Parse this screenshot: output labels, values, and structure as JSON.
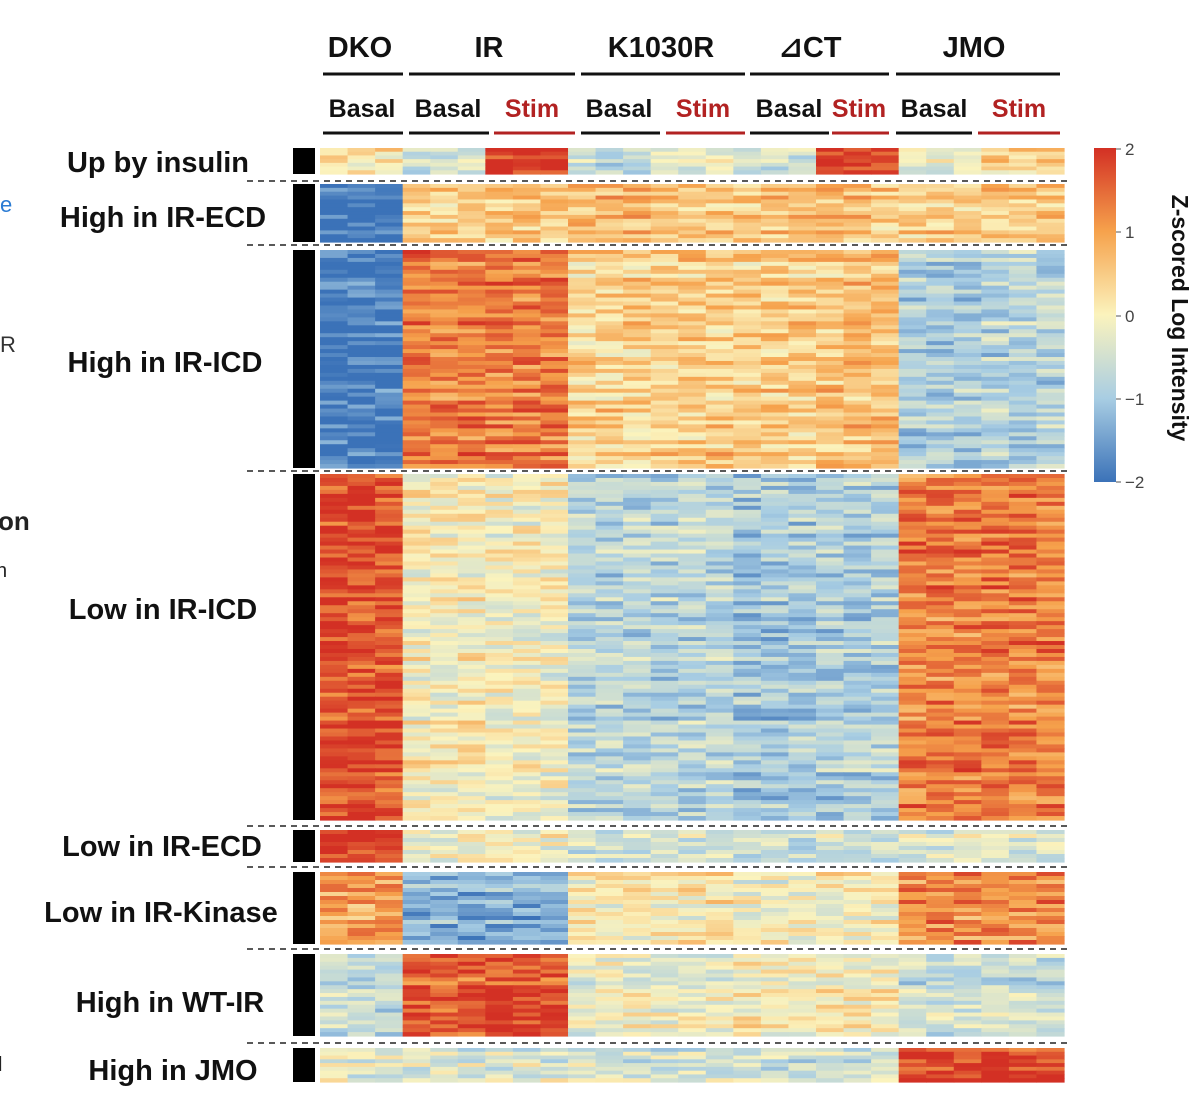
{
  "left_edge_fragments": [
    {
      "text": "e",
      "color": "#2a7bd3"
    },
    {
      "text": "R",
      "color": "#333333"
    },
    {
      "text": "on",
      "color": "#222222"
    },
    {
      "text": "n",
      "color": "#222222"
    },
    {
      "text": "l",
      "color": "#222222"
    }
  ],
  "chart_data": {
    "type": "heatmap",
    "title": "",
    "value_description": "Row z-scored log intensity of proteins across insulin receptor genotypes, basal vs insulin-stimulated",
    "groups": [
      {
        "name": "DKO",
        "conditions": [
          "Basal"
        ]
      },
      {
        "name": "IR",
        "conditions": [
          "Basal",
          "Stim"
        ]
      },
      {
        "name": "K1030R",
        "conditions": [
          "Basal",
          "Stim"
        ]
      },
      {
        "name": "⊿CT",
        "conditions": [
          "Basal",
          "Stim"
        ]
      },
      {
        "name": "JMO",
        "conditions": [
          "Basal",
          "Stim"
        ]
      }
    ],
    "condition_colors": {
      "Basal": "#111111",
      "Stim": "#b22222"
    },
    "clusters": [
      {
        "label": "Up by insulin",
        "profile": [
          0.2,
          -0.5,
          1.9,
          -0.7,
          -0.3,
          -0.5,
          1.9,
          -0.2,
          0.4
        ]
      },
      {
        "label": "High in IR-ECD",
        "profile": [
          -2.0,
          0.5,
          0.6,
          0.7,
          0.6,
          0.6,
          0.6,
          0.5,
          0.6
        ]
      },
      {
        "label": "High in IR-ICD",
        "profile": [
          -1.9,
          1.3,
          1.3,
          0.4,
          0.5,
          0.5,
          0.6,
          -0.9,
          -0.8
        ]
      },
      {
        "label": "Low in IR-ICD",
        "profile": [
          1.7,
          0.0,
          -0.1,
          -0.8,
          -0.8,
          -1.0,
          -0.9,
          1.3,
          1.3
        ]
      },
      {
        "label": "Low in IR-ECD",
        "profile": [
          2.0,
          0.0,
          0.0,
          -0.4,
          -0.4,
          -0.5,
          -0.4,
          -0.3,
          -0.3
        ]
      },
      {
        "label": "Low in IR-Kinase",
        "profile": [
          1.0,
          -1.3,
          -1.3,
          0.1,
          0.1,
          -0.1,
          0.0,
          1.2,
          1.2
        ]
      },
      {
        "label": "High in WT-IR",
        "profile": [
          -0.7,
          1.6,
          1.7,
          -0.2,
          -0.3,
          0.0,
          0.0,
          -0.6,
          -0.6
        ]
      },
      {
        "label": "High in JMO",
        "profile": [
          -0.3,
          -0.3,
          -0.3,
          -0.4,
          -0.4,
          -0.5,
          -0.4,
          1.9,
          1.9
        ]
      }
    ],
    "legend": {
      "title": "Z-scored Log Intensity",
      "ticks": [
        "2",
        "1",
        "0",
        "−1",
        "−2"
      ],
      "range": [
        -2,
        2
      ],
      "colors": [
        "#3b72b8",
        "#a8cde3",
        "#fbf3bd",
        "#f6a24c",
        "#d33024"
      ]
    }
  }
}
